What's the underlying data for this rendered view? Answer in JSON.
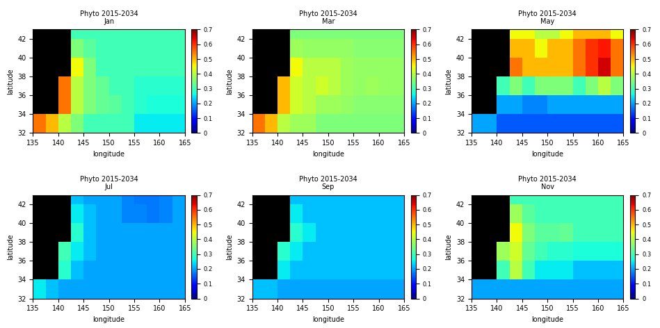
{
  "chart_data": [
    {
      "type": "heatmap",
      "title": "Phyto 2015-2034",
      "subtitle": "Jan",
      "x_label": "longitude",
      "y_label": "latitude",
      "x_edges": [
        135,
        137.5,
        140,
        142.5,
        145,
        147.5,
        150,
        152.5,
        155,
        157.5,
        160,
        162.5,
        165
      ],
      "y_edges": [
        32,
        34,
        36,
        38,
        40,
        42,
        43
      ],
      "cells": [
        [
          0.55,
          0.5,
          0.4,
          0.35,
          0.3,
          0.3,
          0.3,
          0.3,
          0.25,
          0.25,
          0.25,
          0.25
        ],
        [
          null,
          null,
          0.55,
          0.4,
          0.35,
          0.33,
          0.32,
          0.3,
          0.28,
          0.27,
          0.27,
          0.27
        ],
        [
          null,
          null,
          0.55,
          0.4,
          0.35,
          0.33,
          0.3,
          0.3,
          0.28,
          0.28,
          0.28,
          0.28
        ],
        [
          null,
          null,
          null,
          0.45,
          0.35,
          0.3,
          0.3,
          0.3,
          0.3,
          0.3,
          0.3,
          0.3
        ],
        [
          null,
          null,
          null,
          0.35,
          0.32,
          0.3,
          0.3,
          0.3,
          0.3,
          0.3,
          0.3,
          0.3
        ],
        [
          null,
          null,
          null,
          0.3,
          0.3,
          0.3,
          0.3,
          0.3,
          0.3,
          0.3,
          0.3,
          0.3
        ]
      ],
      "xlim": [
        135,
        165
      ],
      "ylim": [
        32,
        43
      ],
      "xticks": [
        135,
        140,
        145,
        150,
        155,
        160,
        165
      ],
      "yticks": [
        32,
        34,
        36,
        38,
        40,
        42
      ],
      "color_range": [
        0,
        0.7
      ],
      "colorbar_ticks": [
        0,
        0.1,
        0.2,
        0.3,
        0.4,
        0.5,
        0.6,
        0.7
      ]
    },
    {
      "type": "heatmap",
      "title": "Phyto 2015-2034",
      "subtitle": "Mar",
      "x_label": "longitude",
      "y_label": "latitude",
      "x_edges": [
        135,
        137.5,
        140,
        142.5,
        145,
        147.5,
        150,
        152.5,
        155,
        157.5,
        160,
        162.5,
        165
      ],
      "y_edges": [
        32,
        34,
        36,
        38,
        40,
        42,
        43
      ],
      "cells": [
        [
          0.55,
          0.5,
          0.4,
          0.38,
          0.38,
          0.35,
          0.35,
          0.35,
          0.35,
          0.35,
          0.35,
          0.35
        ],
        [
          null,
          null,
          0.5,
          0.42,
          0.4,
          0.38,
          0.38,
          0.37,
          0.36,
          0.36,
          0.36,
          0.36
        ],
        [
          null,
          null,
          0.5,
          0.42,
          0.4,
          0.42,
          0.4,
          0.38,
          0.37,
          0.38,
          0.37,
          0.37
        ],
        [
          null,
          null,
          null,
          0.45,
          0.4,
          0.4,
          0.4,
          0.38,
          0.37,
          0.37,
          0.37,
          0.37
        ],
        [
          null,
          null,
          null,
          0.38,
          0.37,
          0.37,
          0.37,
          0.37,
          0.36,
          0.36,
          0.36,
          0.36
        ],
        [
          null,
          null,
          null,
          0.35,
          0.35,
          0.35,
          0.35,
          0.35,
          0.35,
          0.35,
          0.35,
          0.35
        ]
      ],
      "xlim": [
        135,
        165
      ],
      "ylim": [
        32,
        43
      ],
      "xticks": [
        135,
        140,
        145,
        150,
        155,
        160,
        165
      ],
      "yticks": [
        32,
        34,
        36,
        38,
        40,
        42
      ],
      "color_range": [
        0,
        0.7
      ],
      "colorbar_ticks": [
        0,
        0.1,
        0.2,
        0.3,
        0.4,
        0.5,
        0.6,
        0.7
      ]
    },
    {
      "type": "heatmap",
      "title": "Phyto 2015-2034",
      "subtitle": "May",
      "x_label": "longitude",
      "y_label": "latitude",
      "x_edges": [
        135,
        137.5,
        140,
        142.5,
        145,
        147.5,
        150,
        152.5,
        155,
        157.5,
        160,
        162.5,
        165
      ],
      "y_edges": [
        32,
        34,
        36,
        38,
        40,
        42,
        43
      ],
      "cells": [
        [
          0.2,
          0.2,
          0.15,
          0.15,
          0.15,
          0.15,
          0.15,
          0.15,
          0.15,
          0.15,
          0.15,
          0.15
        ],
        [
          null,
          null,
          0.2,
          0.2,
          0.18,
          0.18,
          0.2,
          0.2,
          0.2,
          0.2,
          0.2,
          0.2
        ],
        [
          null,
          null,
          0.3,
          0.35,
          0.3,
          0.35,
          0.35,
          0.35,
          0.3,
          0.35,
          0.4,
          0.35
        ],
        [
          null,
          null,
          null,
          0.55,
          0.5,
          0.5,
          0.5,
          0.5,
          0.55,
          0.6,
          0.65,
          0.55
        ],
        [
          null,
          null,
          null,
          0.5,
          0.5,
          0.45,
          0.5,
          0.5,
          0.55,
          0.6,
          0.62,
          0.55
        ],
        [
          null,
          null,
          null,
          0.45,
          0.45,
          0.4,
          0.4,
          0.45,
          0.5,
          0.5,
          0.5,
          0.45
        ]
      ],
      "xlim": [
        135,
        165
      ],
      "ylim": [
        32,
        43
      ],
      "xticks": [
        135,
        140,
        145,
        150,
        155,
        160,
        165
      ],
      "yticks": [
        32,
        34,
        36,
        38,
        40,
        42
      ],
      "color_range": [
        0,
        0.7
      ],
      "colorbar_ticks": [
        0,
        0.1,
        0.2,
        0.3,
        0.4,
        0.5,
        0.6,
        0.7
      ]
    },
    {
      "type": "heatmap",
      "title": "Phyto 2015-2034",
      "subtitle": "Jul",
      "x_label": "longitude",
      "y_label": "latitude",
      "x_edges": [
        135,
        137.5,
        140,
        142.5,
        145,
        147.5,
        150,
        152.5,
        155,
        157.5,
        160,
        162.5,
        165
      ],
      "y_edges": [
        32,
        34,
        36,
        38,
        40,
        42,
        43
      ],
      "cells": [
        [
          0.25,
          0.22,
          0.2,
          0.2,
          0.2,
          0.2,
          0.2,
          0.2,
          0.2,
          0.2,
          0.2,
          0.2
        ],
        [
          null,
          null,
          0.28,
          0.22,
          0.2,
          0.2,
          0.2,
          0.2,
          0.2,
          0.2,
          0.2,
          0.2
        ],
        [
          null,
          null,
          0.3,
          0.25,
          0.22,
          0.2,
          0.2,
          0.2,
          0.2,
          0.2,
          0.2,
          0.2
        ],
        [
          null,
          null,
          null,
          0.28,
          0.22,
          0.2,
          0.2,
          0.2,
          0.2,
          0.2,
          0.2,
          0.2
        ],
        [
          null,
          null,
          null,
          0.25,
          0.22,
          0.2,
          0.2,
          0.18,
          0.18,
          0.17,
          0.18,
          0.2
        ],
        [
          null,
          null,
          null,
          0.22,
          0.2,
          0.2,
          0.2,
          0.18,
          0.17,
          0.17,
          0.18,
          0.2
        ]
      ],
      "xlim": [
        135,
        165
      ],
      "ylim": [
        32,
        43
      ],
      "xticks": [
        135,
        140,
        145,
        150,
        155,
        160,
        165
      ],
      "yticks": [
        32,
        34,
        36,
        38,
        40,
        42
      ],
      "color_range": [
        0,
        0.7
      ],
      "colorbar_ticks": [
        0,
        0.1,
        0.2,
        0.3,
        0.4,
        0.5,
        0.6,
        0.7
      ]
    },
    {
      "type": "heatmap",
      "title": "Phyto 2015-2034",
      "subtitle": "Sep",
      "x_label": "longitude",
      "y_label": "latitude",
      "x_edges": [
        135,
        137.5,
        140,
        142.5,
        145,
        147.5,
        150,
        152.5,
        155,
        157.5,
        160,
        162.5,
        165
      ],
      "y_edges": [
        32,
        34,
        36,
        38,
        40,
        42,
        43
      ],
      "cells": [
        [
          0.22,
          0.22,
          0.2,
          0.2,
          0.2,
          0.2,
          0.2,
          0.2,
          0.2,
          0.2,
          0.2,
          0.2
        ],
        [
          null,
          null,
          0.25,
          0.22,
          0.22,
          0.22,
          0.22,
          0.22,
          0.22,
          0.22,
          0.22,
          0.22
        ],
        [
          null,
          null,
          0.28,
          0.25,
          0.22,
          0.22,
          0.22,
          0.22,
          0.22,
          0.22,
          0.22,
          0.22
        ],
        [
          null,
          null,
          null,
          0.28,
          0.25,
          0.22,
          0.22,
          0.22,
          0.22,
          0.22,
          0.22,
          0.22
        ],
        [
          null,
          null,
          null,
          0.25,
          0.22,
          0.22,
          0.22,
          0.22,
          0.22,
          0.22,
          0.22,
          0.22
        ],
        [
          null,
          null,
          null,
          0.22,
          0.22,
          0.22,
          0.22,
          0.22,
          0.22,
          0.22,
          0.22,
          0.22
        ]
      ],
      "xlim": [
        135,
        165
      ],
      "ylim": [
        32,
        43
      ],
      "xticks": [
        135,
        140,
        145,
        150,
        155,
        160,
        165
      ],
      "yticks": [
        32,
        34,
        36,
        38,
        40,
        42
      ],
      "color_range": [
        0,
        0.7
      ],
      "colorbar_ticks": [
        0,
        0.1,
        0.2,
        0.3,
        0.4,
        0.5,
        0.6,
        0.7
      ]
    },
    {
      "type": "heatmap",
      "title": "Phyto 2015-2034",
      "subtitle": "Nov",
      "x_label": "longitude",
      "y_label": "latitude",
      "x_edges": [
        135,
        137.5,
        140,
        142.5,
        145,
        147.5,
        150,
        152.5,
        155,
        157.5,
        160,
        162.5,
        165
      ],
      "y_edges": [
        32,
        34,
        36,
        38,
        40,
        42,
        43
      ],
      "cells": [
        [
          0.2,
          0.2,
          0.2,
          0.2,
          0.2,
          0.2,
          0.2,
          0.2,
          0.2,
          0.2,
          0.2,
          0.2
        ],
        [
          null,
          null,
          0.3,
          0.4,
          0.3,
          0.25,
          0.25,
          0.25,
          0.22,
          0.22,
          0.22,
          0.22
        ],
        [
          null,
          null,
          0.38,
          0.42,
          0.33,
          0.3,
          0.28,
          0.28,
          0.27,
          0.27,
          0.27,
          0.27
        ],
        [
          null,
          null,
          null,
          0.45,
          0.35,
          0.32,
          0.32,
          0.33,
          0.3,
          0.3,
          0.3,
          0.3
        ],
        [
          null,
          null,
          null,
          0.38,
          0.32,
          0.3,
          0.3,
          0.3,
          0.3,
          0.3,
          0.3,
          0.3
        ],
        [
          null,
          null,
          null,
          0.3,
          0.3,
          0.3,
          0.3,
          0.3,
          0.3,
          0.3,
          0.3,
          0.3
        ]
      ],
      "xlim": [
        135,
        165
      ],
      "ylim": [
        32,
        43
      ],
      "xticks": [
        135,
        140,
        145,
        150,
        155,
        160,
        165
      ],
      "yticks": [
        32,
        34,
        36,
        38,
        40,
        42
      ],
      "color_range": [
        0,
        0.7
      ],
      "colorbar_ticks": [
        0,
        0.1,
        0.2,
        0.3,
        0.4,
        0.5,
        0.6,
        0.7
      ]
    }
  ]
}
